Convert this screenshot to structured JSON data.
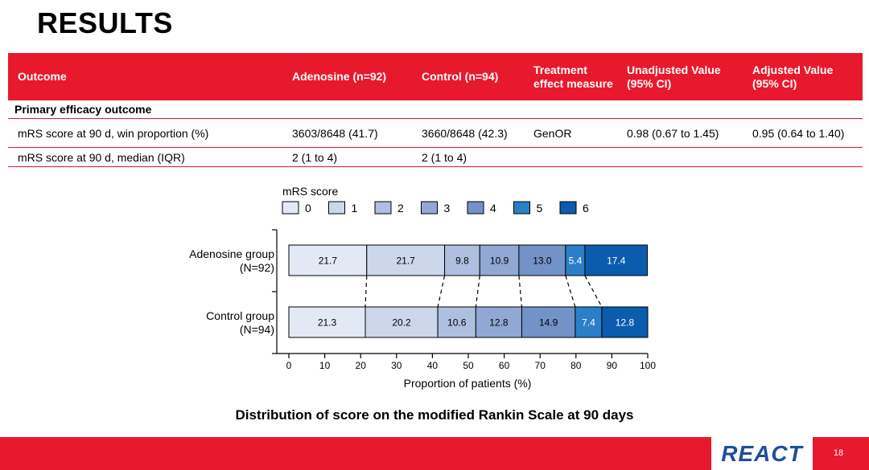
{
  "slide": {
    "title": "RESULTS",
    "page_number": "18",
    "logo_text": "REACT"
  },
  "table": {
    "headers": [
      "Outcome",
      "Adenosine (n=92)",
      "Control (n=94)",
      "Treatment effect measure",
      "Unadjusted Value (95% CI)",
      "Adjusted Value (95% CI)"
    ],
    "section_label": "Primary efficacy outcome",
    "rows": [
      [
        "mRS score at 90 d, win proportion (%)",
        "3603/8648 (41.7)",
        "3660/8648 (42.3)",
        "GenOR",
        "0.98 (0.67 to 1.45)",
        "0.95 (0.64 to 1.40)"
      ],
      [
        "mRS score at 90 d, median (IQR)",
        "2 (1 to 4)",
        "2 (1 to 4)",
        "",
        "",
        ""
      ]
    ]
  },
  "chart_data": {
    "type": "bar",
    "orientation": "horizontal",
    "stacked": true,
    "legend_title": "mRS score",
    "legend_position": "top",
    "categories": [
      "Adenosine group (N=92)",
      "Control group (N=94)"
    ],
    "category_lines": [
      [
        "Adenosine group",
        "(N=92)"
      ],
      [
        "Control group",
        "(N=94)"
      ]
    ],
    "series": [
      {
        "name": "0",
        "color": "#e3e9f4",
        "values": [
          21.7,
          21.3
        ]
      },
      {
        "name": "1",
        "color": "#ccd7ec",
        "values": [
          21.7,
          20.2
        ]
      },
      {
        "name": "2",
        "color": "#aebfdf",
        "values": [
          9.8,
          10.6
        ]
      },
      {
        "name": "3",
        "color": "#90a8d3",
        "values": [
          10.9,
          12.8
        ]
      },
      {
        "name": "4",
        "color": "#7392c8",
        "values": [
          13.0,
          14.9
        ]
      },
      {
        "name": "5",
        "color": "#2a7fc8",
        "values": [
          5.4,
          7.4
        ]
      },
      {
        "name": "6",
        "color": "#0b5cad",
        "values": [
          17.4,
          12.8
        ]
      }
    ],
    "xlabel": "Proportion of patients (%)",
    "xlim": [
      0,
      100
    ],
    "xticks": [
      0,
      10,
      20,
      30,
      40,
      50,
      60,
      70,
      80,
      90,
      100
    ],
    "grid": false,
    "caption": "Distribution of score on the modified Rankin Scale at 90 days"
  }
}
